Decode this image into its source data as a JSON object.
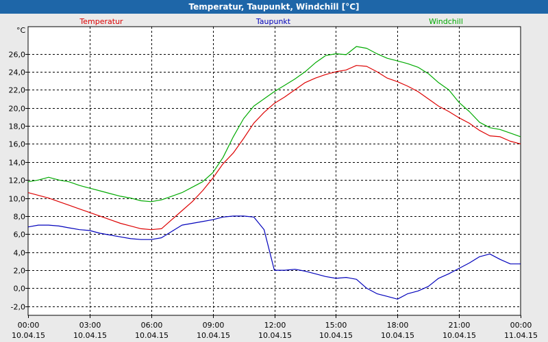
{
  "window": {
    "title": "Temperatur, Taupunkt, Windchill [°C]"
  },
  "colors": {
    "title_bar": "#1e66a8",
    "background": "#eaeaea",
    "plot_bg": "#ffffff",
    "grid": "#000000"
  },
  "chart_data": {
    "type": "line",
    "title": "Temperatur, Taupunkt, Windchill [°C]",
    "ylabel": "°C",
    "ylim": [
      -3,
      29
    ],
    "xlim": [
      0,
      24
    ],
    "grid": true,
    "legend_position": "top",
    "y_ticks": [
      {
        "value": 26,
        "label": "26,0"
      },
      {
        "value": 24,
        "label": "24,0"
      },
      {
        "value": 22,
        "label": "22,0"
      },
      {
        "value": 20,
        "label": "20,0"
      },
      {
        "value": 18,
        "label": "18,0"
      },
      {
        "value": 16,
        "label": "16,0"
      },
      {
        "value": 14,
        "label": "14,0"
      },
      {
        "value": 12,
        "label": "12,0"
      },
      {
        "value": 10,
        "label": "10,0"
      },
      {
        "value": 8,
        "label": "8,0"
      },
      {
        "value": 6,
        "label": "6,0"
      },
      {
        "value": 4,
        "label": "4,0"
      },
      {
        "value": 2,
        "label": "2,0"
      },
      {
        "value": 0,
        "label": "0,0"
      },
      {
        "value": -2,
        "label": "-2,0"
      }
    ],
    "x_ticks": [
      {
        "time": "00:00",
        "date": "10.04.15"
      },
      {
        "time": "03:00",
        "date": "10.04.15"
      },
      {
        "time": "06:00",
        "date": "10.04.15"
      },
      {
        "time": "09:00",
        "date": "10.04.15"
      },
      {
        "time": "12:00",
        "date": "10.04.15"
      },
      {
        "time": "15:00",
        "date": "10.04.15"
      },
      {
        "time": "18:00",
        "date": "10.04.15"
      },
      {
        "time": "21:00",
        "date": "10.04.15"
      },
      {
        "time": "00:00",
        "date": "11.04.15"
      }
    ],
    "x_hours": [
      0,
      0.5,
      1,
      1.5,
      2,
      2.5,
      3,
      3.5,
      4,
      4.5,
      5,
      5.5,
      6,
      6.5,
      7,
      7.5,
      8,
      8.5,
      9,
      9.5,
      10,
      10.5,
      11,
      11.5,
      12,
      12.5,
      13,
      13.5,
      14,
      14.5,
      15,
      15.5,
      16,
      16.5,
      17,
      17.5,
      18,
      18.5,
      19,
      19.5,
      20,
      20.5,
      21,
      21.5,
      22,
      22.5,
      23,
      23.5,
      24
    ],
    "series": [
      {
        "name": "Temperatur",
        "color": "#dd0000",
        "values": [
          10.6,
          10.3,
          10.0,
          9.6,
          9.2,
          8.8,
          8.4,
          8.0,
          7.6,
          7.2,
          6.9,
          6.6,
          6.5,
          6.6,
          7.6,
          8.6,
          9.6,
          10.8,
          12.2,
          13.8,
          15.0,
          16.6,
          18.3,
          19.5,
          20.5,
          21.2,
          22.0,
          22.8,
          23.3,
          23.7,
          24.0,
          24.2,
          24.7,
          24.6,
          24.0,
          23.3,
          22.9,
          22.4,
          21.8,
          21.0,
          20.2,
          19.6,
          18.9,
          18.3,
          17.5,
          16.9,
          16.8,
          16.3,
          16.0
        ]
      },
      {
        "name": "Taupunkt",
        "color": "#0000bb",
        "values": [
          6.8,
          7.0,
          7.0,
          6.9,
          6.7,
          6.5,
          6.4,
          6.1,
          5.9,
          5.7,
          5.5,
          5.4,
          5.4,
          5.6,
          6.3,
          7.0,
          7.2,
          7.4,
          7.6,
          7.9,
          8.0,
          8.0,
          7.9,
          6.5,
          2.0,
          2.0,
          2.1,
          1.9,
          1.6,
          1.3,
          1.1,
          1.2,
          1.0,
          0.0,
          -0.6,
          -0.9,
          -1.2,
          -0.6,
          -0.3,
          0.2,
          1.1,
          1.6,
          2.2,
          2.8,
          3.5,
          3.8,
          3.2,
          2.7,
          2.7
        ]
      },
      {
        "name": "Windchill",
        "color": "#00aa00",
        "values": [
          11.8,
          12.0,
          12.3,
          12.0,
          11.8,
          11.4,
          11.1,
          10.8,
          10.5,
          10.2,
          10.0,
          9.7,
          9.6,
          9.8,
          10.2,
          10.6,
          11.2,
          11.8,
          12.8,
          14.5,
          16.8,
          18.8,
          20.2,
          21.0,
          21.8,
          22.5,
          23.2,
          24.0,
          25.0,
          25.8,
          26.0,
          25.9,
          26.8,
          26.6,
          26.0,
          25.5,
          25.2,
          24.9,
          24.5,
          23.8,
          22.8,
          22.0,
          20.6,
          19.6,
          18.4,
          17.8,
          17.6,
          17.2,
          16.8
        ]
      }
    ]
  }
}
